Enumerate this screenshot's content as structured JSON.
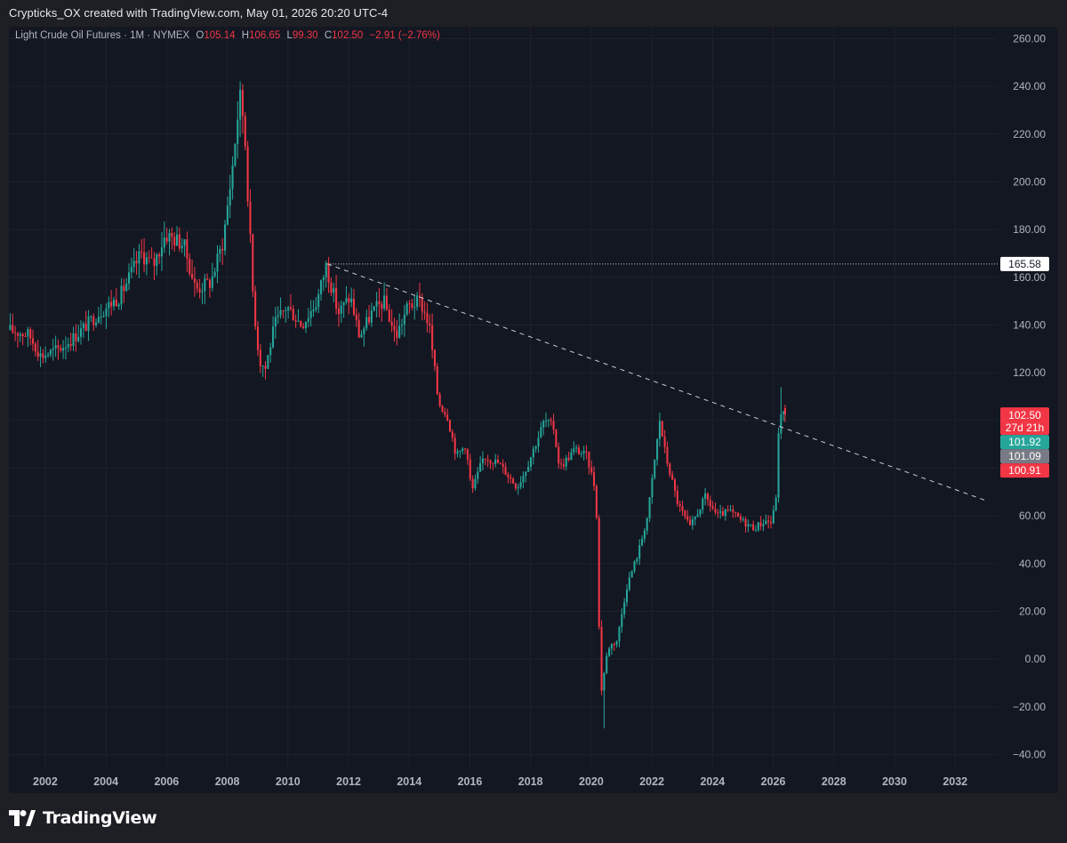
{
  "header": {
    "credit": "Crypticks_OX created with TradingView.com, May 01, 2026 20:20 UTC-4"
  },
  "legend": {
    "symbol": "Light Crude Oil Futures · 1M · NYMEX",
    "o_label": "O",
    "o_value": "105.14",
    "h_label": "H",
    "h_value": "106.65",
    "l_label": "L",
    "l_value": "99.30",
    "c_label": "C",
    "c_value": "102.50",
    "change": "−2.91 (−2.76%)"
  },
  "footer": {
    "brand": "TradingView"
  },
  "colors": {
    "up": "#26a69a",
    "down": "#f23645",
    "background": "#131722",
    "grid": "#1e222d",
    "axis_text": "#b2b5be",
    "gray_tag": "#787b86"
  },
  "chart_data": {
    "type": "candlestick",
    "timeframe": "1M",
    "y_ticks": [
      "260.00",
      "240.00",
      "220.00",
      "200.00",
      "180.00",
      "160.00",
      "140.00",
      "120.00",
      "100.00",
      "80.00",
      "60.00",
      "40.00",
      "20.00",
      "0.00",
      "−20.00",
      "−40.00"
    ],
    "x_ticks": [
      "2002",
      "2004",
      "2006",
      "2008",
      "2010",
      "2012",
      "2014",
      "2016",
      "2018",
      "2020",
      "2022",
      "2024",
      "2026",
      "2028",
      "2030",
      "2032"
    ],
    "ylim": [
      -45,
      265
    ],
    "xlim": [
      2000.8,
      2033.4
    ],
    "anchors": [
      [
        2000.8,
        138
      ],
      [
        2001.5,
        136
      ],
      [
        2001.9,
        127
      ],
      [
        2002.5,
        130
      ],
      [
        2003.0,
        135
      ],
      [
        2003.8,
        145
      ],
      [
        2004.5,
        152
      ],
      [
        2005.2,
        170
      ],
      [
        2005.6,
        165
      ],
      [
        2006.0,
        178
      ],
      [
        2006.6,
        174
      ],
      [
        2007.0,
        155
      ],
      [
        2007.5,
        158
      ],
      [
        2007.9,
        175
      ],
      [
        2008.2,
        205
      ],
      [
        2008.45,
        236
      ],
      [
        2008.6,
        225
      ],
      [
        2008.9,
        150
      ],
      [
        2009.1,
        125
      ],
      [
        2009.3,
        122
      ],
      [
        2009.6,
        140
      ],
      [
        2010.0,
        148
      ],
      [
        2010.5,
        140
      ],
      [
        2011.0,
        150
      ],
      [
        2011.3,
        165
      ],
      [
        2011.7,
        145
      ],
      [
        2012.1,
        152
      ],
      [
        2012.4,
        135
      ],
      [
        2012.8,
        145
      ],
      [
        2013.2,
        150
      ],
      [
        2013.6,
        135
      ],
      [
        2014.0,
        148
      ],
      [
        2014.4,
        150
      ],
      [
        2014.7,
        140
      ],
      [
        2015.0,
        108
      ],
      [
        2015.3,
        102
      ],
      [
        2015.6,
        85
      ],
      [
        2015.9,
        90
      ],
      [
        2016.1,
        70
      ],
      [
        2016.5,
        85
      ],
      [
        2017.0,
        82
      ],
      [
        2017.6,
        72
      ],
      [
        2017.9,
        80
      ],
      [
        2018.5,
        100
      ],
      [
        2018.8,
        97
      ],
      [
        2019.0,
        80
      ],
      [
        2019.5,
        88
      ],
      [
        2019.9,
        85
      ],
      [
        2020.2,
        70
      ],
      [
        2020.35,
        -15
      ],
      [
        2020.6,
        5
      ],
      [
        2020.9,
        8
      ],
      [
        2021.2,
        30
      ],
      [
        2021.6,
        45
      ],
      [
        2021.9,
        60
      ],
      [
        2022.3,
        100
      ],
      [
        2022.5,
        85
      ],
      [
        2022.9,
        65
      ],
      [
        2023.3,
        55
      ],
      [
        2023.8,
        68
      ],
      [
        2024.2,
        60
      ],
      [
        2024.6,
        62
      ],
      [
        2025.0,
        58
      ],
      [
        2025.4,
        55
      ],
      [
        2025.8,
        58
      ],
      [
        2026.0,
        57
      ],
      [
        2026.15,
        70
      ],
      [
        2026.25,
        105
      ],
      [
        2026.35,
        103
      ]
    ],
    "last_candle": {
      "open": 105.14,
      "high": 106.65,
      "low": 99.3,
      "close": 102.5
    },
    "resistance_level": {
      "value": 165.58,
      "label": "165.58"
    },
    "trendline": {
      "from": [
        2011.3,
        165.58
      ],
      "to": [
        2033.0,
        66.5
      ],
      "style": "dashed"
    },
    "price_tags": [
      {
        "value": 102.5,
        "label": "102.50",
        "sublabel": "27d 21h",
        "color": "#f23645"
      },
      {
        "value": 101.92,
        "label": "101.92",
        "color": "#26a69a"
      },
      {
        "value": 101.09,
        "label": "101.09",
        "color": "#787b86"
      },
      {
        "value": 100.91,
        "label": "100.91",
        "color": "#f23645"
      }
    ]
  }
}
